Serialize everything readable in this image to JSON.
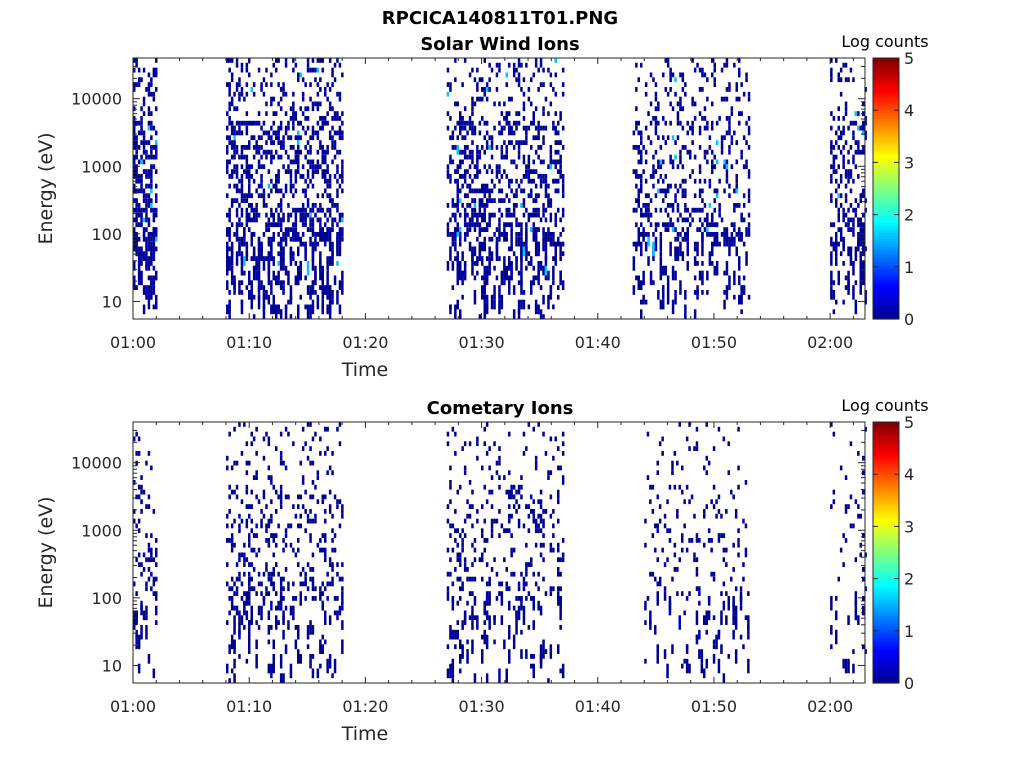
{
  "figure": {
    "title": "RPCICA140811T01.PNG",
    "colorbar_label": "Log counts",
    "colorbar_ticks": [
      "0",
      "1",
      "2",
      "3",
      "4",
      "5"
    ],
    "colormap": [
      "#00008f",
      "#0000ff",
      "#0080ff",
      "#00ffff",
      "#80ff80",
      "#ffff00",
      "#ff8000",
      "#ff0000",
      "#800000"
    ]
  },
  "chart_data": [
    {
      "type": "heatmap",
      "title": "Solar Wind Ions",
      "xlabel": "Time",
      "ylabel": "Energy (eV)",
      "x_ticks": [
        "01:00",
        "01:10",
        "01:20",
        "01:30",
        "01:40",
        "01:50",
        "02:00"
      ],
      "y_ticks": [
        "10",
        "100",
        "1000",
        "10000"
      ],
      "y_scale": "log",
      "ylim": [
        5.5,
        40000
      ],
      "xlim_minutes": [
        0,
        63
      ],
      "clim": [
        0,
        5
      ],
      "colorbar_label": "Log counts",
      "data_intervals": [
        {
          "start": "01:00",
          "end": "01:02",
          "density": 0.72
        },
        {
          "start": "01:08",
          "end": "01:18",
          "density": 0.55
        },
        {
          "start": "01:27",
          "end": "01:37",
          "density": 0.5
        },
        {
          "start": "01:43",
          "end": "01:53",
          "density": 0.35
        },
        {
          "start": "02:00",
          "end": "02:03",
          "density": 0.45
        }
      ],
      "typical_log_counts": 0.1,
      "max_log_counts": 1.6
    },
    {
      "type": "heatmap",
      "title": "Cometary Ions",
      "xlabel": "Time",
      "ylabel": "Energy (eV)",
      "x_ticks": [
        "01:00",
        "01:10",
        "01:20",
        "01:30",
        "01:40",
        "01:50",
        "02:00"
      ],
      "y_ticks": [
        "10",
        "100",
        "1000",
        "10000"
      ],
      "y_scale": "log",
      "ylim": [
        5.5,
        40000
      ],
      "xlim_minutes": [
        0,
        63
      ],
      "clim": [
        0,
        5
      ],
      "colorbar_label": "Log counts",
      "data_intervals": [
        {
          "start": "01:00",
          "end": "01:02",
          "density": 0.3
        },
        {
          "start": "01:08",
          "end": "01:18",
          "density": 0.28
        },
        {
          "start": "01:27",
          "end": "01:37",
          "density": 0.24
        },
        {
          "start": "01:44",
          "end": "01:53",
          "density": 0.16
        },
        {
          "start": "02:00",
          "end": "02:03",
          "density": 0.12
        }
      ],
      "typical_log_counts": 0.05,
      "max_log_counts": 0.3
    }
  ]
}
